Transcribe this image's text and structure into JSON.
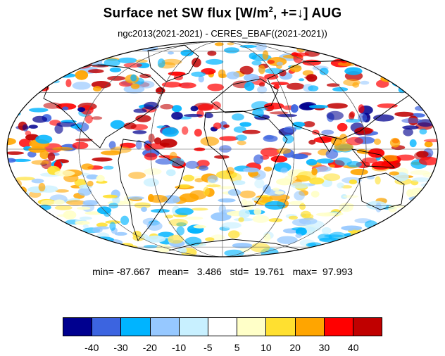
{
  "title": {
    "prefix": "Surface net SW flux [W/m",
    "superscript": "2",
    "suffix": ", +=↓]  AUG"
  },
  "subtitle": "ngc2013(2021-2021) - CERES_EBAF((2021-2021))",
  "stats": {
    "min_label": "min=",
    "min": "-87.667",
    "mean_label": "mean=",
    "mean": "3.486",
    "std_label": "std=",
    "std": "19.761",
    "max_label": "max=",
    "max": "97.993"
  },
  "colorbar": {
    "colors": [
      "#00008f",
      "#3c64e0",
      "#00b4ff",
      "#96c8ff",
      "#c8f0ff",
      "#ffffff",
      "#ffffc8",
      "#ffe030",
      "#ffa500",
      "#ff0000",
      "#c00000"
    ],
    "tick_labels": [
      "-40",
      "-30",
      "-20",
      "-10",
      "-5",
      "5",
      "10",
      "20",
      "30",
      "40"
    ]
  },
  "map": {
    "projection": "mollweide",
    "ocean_color": "#ffffff",
    "outline_color": "#000000"
  }
}
